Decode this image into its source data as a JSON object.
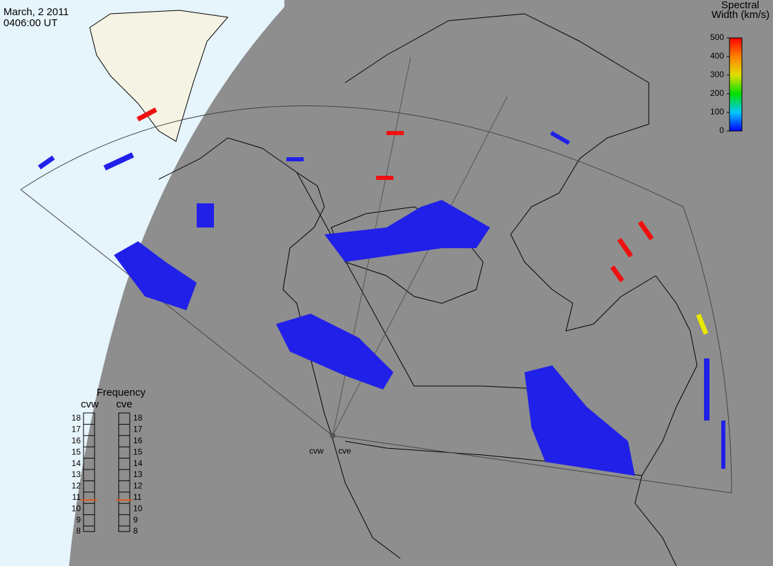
{
  "header": {
    "date": "March, 2 2011",
    "time": "0406:00 UT"
  },
  "colorbar": {
    "title": [
      "Spectral",
      "Width (km/s)"
    ],
    "range": [
      0,
      500
    ],
    "ticks": [
      0,
      100,
      200,
      300,
      400,
      500
    ]
  },
  "frequency": {
    "title": "Frequency",
    "range": [
      8,
      18
    ],
    "ticks": [
      8,
      9,
      10,
      11,
      12,
      13,
      14,
      15,
      16,
      17,
      18
    ],
    "radars": [
      {
        "name": "cvw",
        "value": 10.8,
        "color": "#e05a1e"
      },
      {
        "name": "cve",
        "value": 10.8,
        "color": "#e05a1e"
      }
    ]
  },
  "radar_labels": [
    "cvw",
    "cve"
  ]
}
